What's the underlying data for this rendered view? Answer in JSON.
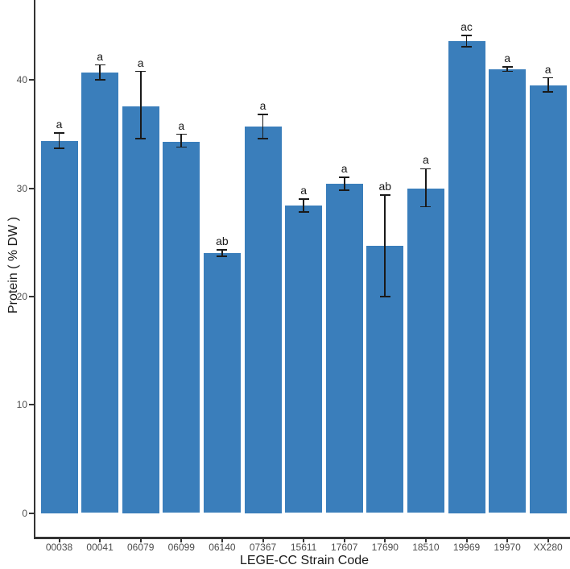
{
  "chart_data": {
    "type": "bar",
    "title": "",
    "xlabel": "LEGE-CC Strain Code",
    "ylabel": "Protein ( % DW )",
    "categories": [
      "00038",
      "00041",
      "06079",
      "06099",
      "06140",
      "07367",
      "15611",
      "17607",
      "17690",
      "18510",
      "19969",
      "19970",
      "XX280"
    ],
    "values": [
      34.4,
      40.7,
      37.6,
      34.3,
      24.0,
      35.7,
      28.4,
      30.4,
      24.7,
      30.0,
      43.6,
      41.0,
      39.5
    ],
    "error_low": [
      33.7,
      40.0,
      34.6,
      33.8,
      23.7,
      34.6,
      27.8,
      29.8,
      20.0,
      28.3,
      43.1,
      40.8,
      38.9
    ],
    "error_high": [
      35.1,
      41.4,
      40.8,
      35.0,
      24.3,
      36.8,
      29.0,
      31.0,
      29.4,
      31.8,
      44.1,
      41.2,
      40.2
    ],
    "significance_labels": [
      "a",
      "a",
      "a",
      "a",
      "ab",
      "a",
      "a",
      "a",
      "ab",
      "a",
      "ac",
      "a",
      "a"
    ],
    "yticks": [
      0,
      10,
      20,
      30,
      40
    ],
    "ylim": [
      0,
      47.4
    ],
    "grid": false,
    "legend": "none",
    "bar_color": "#3A7EBB",
    "error_bar_color": "#1A1A1A",
    "axis_line_color": "#333333",
    "tick_label_color": "#4D4D4D",
    "axis_title_color": "#1A1A1A",
    "background": "#FFFFFF"
  }
}
